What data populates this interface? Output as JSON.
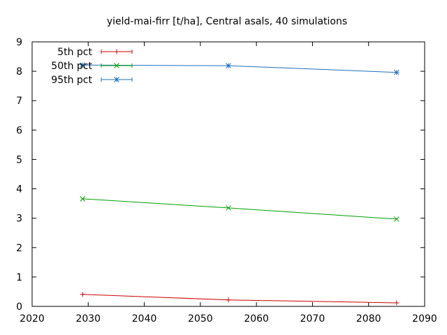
{
  "chart_data": {
    "type": "line",
    "title": "yield-mai-firr [t/ha], Central asals, 40 simulations",
    "xlabel": "",
    "ylabel": "",
    "xlim": [
      2020,
      2090
    ],
    "ylim": [
      0,
      9
    ],
    "x_ticks": [
      2020,
      2030,
      2040,
      2050,
      2060,
      2070,
      2080,
      2090
    ],
    "y_ticks": [
      0,
      1,
      2,
      3,
      4,
      5,
      6,
      7,
      8,
      9
    ],
    "grid": false,
    "legend_position": "top-left",
    "series": [
      {
        "name": "5th pct",
        "color": "#cc0000",
        "marker": "plus",
        "x": [
          2029,
          2055,
          2085
        ],
        "y": [
          0.41,
          0.22,
          0.12
        ]
      },
      {
        "name": "50th pct",
        "color": "#00a000",
        "marker": "cross",
        "x": [
          2029,
          2055,
          2085
        ],
        "y": [
          3.66,
          3.35,
          2.97
        ]
      },
      {
        "name": "95th pct",
        "color": "#1f6fbf",
        "marker": "asterisk",
        "x": [
          2029,
          2055,
          2085
        ],
        "y": [
          8.21,
          8.19,
          7.96
        ]
      }
    ]
  }
}
